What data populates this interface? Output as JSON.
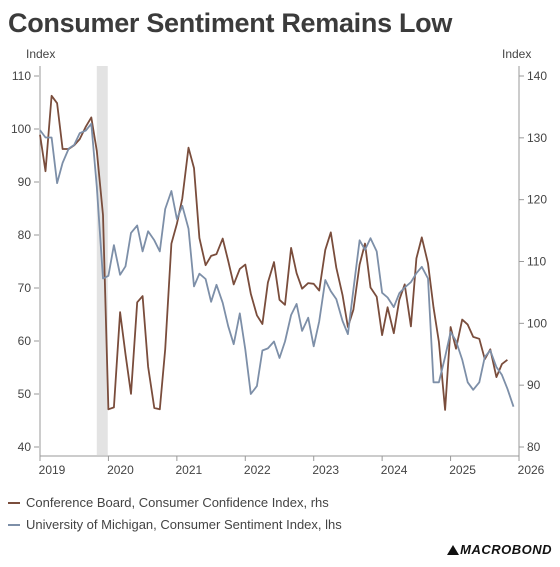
{
  "chart_data": {
    "type": "line",
    "title": "Consumer Sentiment Remains Low",
    "left_axis": {
      "unit": "Index",
      "ylim": [
        40,
        110
      ],
      "ticks": [
        40,
        50,
        60,
        70,
        80,
        90,
        100,
        110
      ]
    },
    "right_axis": {
      "unit": "Index",
      "ylim": [
        80,
        140
      ],
      "ticks": [
        80,
        90,
        100,
        110,
        120,
        130,
        140
      ]
    },
    "x_ticks": [
      "2019",
      "2020",
      "2021",
      "2022",
      "2023",
      "2024",
      "2025",
      "2026"
    ],
    "xlim": [
      2019.0,
      2026.0
    ],
    "shaded_period": [
      2019.83,
      2019.99
    ],
    "grid": false,
    "legend_position": "bottom-left",
    "series": [
      {
        "name": "Conference Board, Consumer Confidence Index, rhs",
        "axis": "right",
        "color": "#7a4d3c",
        "x": [
          2019.0,
          2019.08,
          2019.17,
          2019.25,
          2019.33,
          2019.42,
          2019.5,
          2019.58,
          2019.67,
          2019.75,
          2019.83,
          2019.92,
          2020.0,
          2020.08,
          2020.17,
          2020.25,
          2020.33,
          2020.42,
          2020.5,
          2020.58,
          2020.67,
          2020.75,
          2020.83,
          2020.92,
          2021.0,
          2021.08,
          2021.17,
          2021.25,
          2021.33,
          2021.42,
          2021.5,
          2021.58,
          2021.67,
          2021.75,
          2021.83,
          2021.92,
          2022.0,
          2022.08,
          2022.17,
          2022.25,
          2022.33,
          2022.42,
          2022.5,
          2022.58,
          2022.67,
          2022.75,
          2022.83,
          2022.92,
          2023.0,
          2023.08,
          2023.17,
          2023.25,
          2023.33,
          2023.42,
          2023.5,
          2023.58,
          2023.67,
          2023.75,
          2023.83,
          2023.92,
          2024.0,
          2024.08,
          2024.17,
          2024.25,
          2024.33,
          2024.42,
          2024.5,
          2024.58,
          2024.67,
          2024.75,
          2024.83,
          2024.92,
          2025.0,
          2025.08,
          2025.17,
          2025.25,
          2025.33,
          2025.42,
          2025.5,
          2025.58,
          2025.67,
          2025.75,
          2025.83
        ],
        "values": [
          130.5,
          124.6,
          136.8,
          135.6,
          128.2,
          128.2,
          128.8,
          129.8,
          131.8,
          133.3,
          127.9,
          117.5,
          86.1,
          86.4,
          101.8,
          95.0,
          88.6,
          103.4,
          104.4,
          93.0,
          86.3,
          86.1,
          95.8,
          112.9,
          116.1,
          120.2,
          128.4,
          125.1,
          113.8,
          109.4,
          110.9,
          111.2,
          113.7,
          110.1,
          106.3,
          108.8,
          109.5,
          104.8,
          101.3,
          99.9,
          106.6,
          109.9,
          103.8,
          103.0,
          112.2,
          108.1,
          105.6,
          106.5,
          106.4,
          105.3,
          111.9,
          114.7,
          109.0,
          104.6,
          99.4,
          102.2,
          109.5,
          112.9,
          105.8,
          104.3,
          98.1,
          102.6,
          98.4,
          103.8,
          106.3,
          99.5,
          110.5,
          113.9,
          109.7,
          102.6,
          97.0,
          86.0,
          99.4,
          95.9,
          100.6,
          99.8,
          97.8,
          97.5,
          94.2,
          95.8,
          91.3,
          93.4,
          94.1
        ]
      },
      {
        "name": "University of Michigan, Consumer Sentiment Index, lhs",
        "axis": "left",
        "color": "#7d8fa8",
        "x": [
          2019.0,
          2019.08,
          2019.17,
          2019.25,
          2019.33,
          2019.42,
          2019.5,
          2019.58,
          2019.67,
          2019.75,
          2019.83,
          2019.92,
          2020.0,
          2020.08,
          2020.17,
          2020.25,
          2020.33,
          2020.42,
          2020.5,
          2020.58,
          2020.67,
          2020.75,
          2020.83,
          2020.92,
          2021.0,
          2021.08,
          2021.17,
          2021.25,
          2021.33,
          2021.42,
          2021.5,
          2021.58,
          2021.67,
          2021.75,
          2021.83,
          2021.92,
          2022.0,
          2022.08,
          2022.17,
          2022.25,
          2022.33,
          2022.42,
          2022.5,
          2022.58,
          2022.67,
          2022.75,
          2022.83,
          2022.92,
          2023.0,
          2023.08,
          2023.17,
          2023.25,
          2023.33,
          2023.42,
          2023.5,
          2023.58,
          2023.67,
          2023.75,
          2023.83,
          2023.92,
          2024.0,
          2024.08,
          2024.17,
          2024.25,
          2024.33,
          2024.42,
          2024.5,
          2024.58,
          2024.67,
          2024.75,
          2024.83,
          2024.92,
          2025.0,
          2025.08,
          2025.17,
          2025.25,
          2025.33,
          2025.42,
          2025.5,
          2025.58,
          2025.67,
          2025.75,
          2025.83,
          2025.92
        ],
        "values": [
          99.8,
          98.4,
          98.4,
          89.8,
          93.6,
          96.3,
          97.0,
          99.2,
          99.7,
          101.0,
          89.1,
          71.8,
          72.3,
          78.1,
          72.5,
          74.1,
          80.4,
          81.8,
          76.9,
          80.7,
          79.0,
          76.9,
          84.9,
          88.3,
          83.0,
          85.5,
          81.2,
          70.3,
          72.7,
          71.7,
          67.4,
          70.6,
          67.2,
          62.8,
          59.4,
          65.2,
          58.4,
          50.0,
          51.5,
          58.2,
          58.6,
          59.9,
          56.8,
          59.9,
          64.9,
          67.0,
          61.9,
          64.4,
          59.0,
          63.7,
          71.5,
          69.4,
          67.9,
          63.8,
          61.3,
          69.7,
          79.0,
          77.2,
          79.4,
          76.9,
          69.1,
          68.2,
          66.4,
          69.0,
          70.1,
          71.1,
          72.8,
          74.0,
          71.8,
          52.2,
          52.2,
          57.0,
          61.7,
          60.0,
          56.5,
          52.2,
          50.8,
          52.2,
          57.0,
          58.2,
          55.1,
          53.6,
          51.0,
          47.6
        ]
      }
    ]
  },
  "brand": "MACROBOND"
}
